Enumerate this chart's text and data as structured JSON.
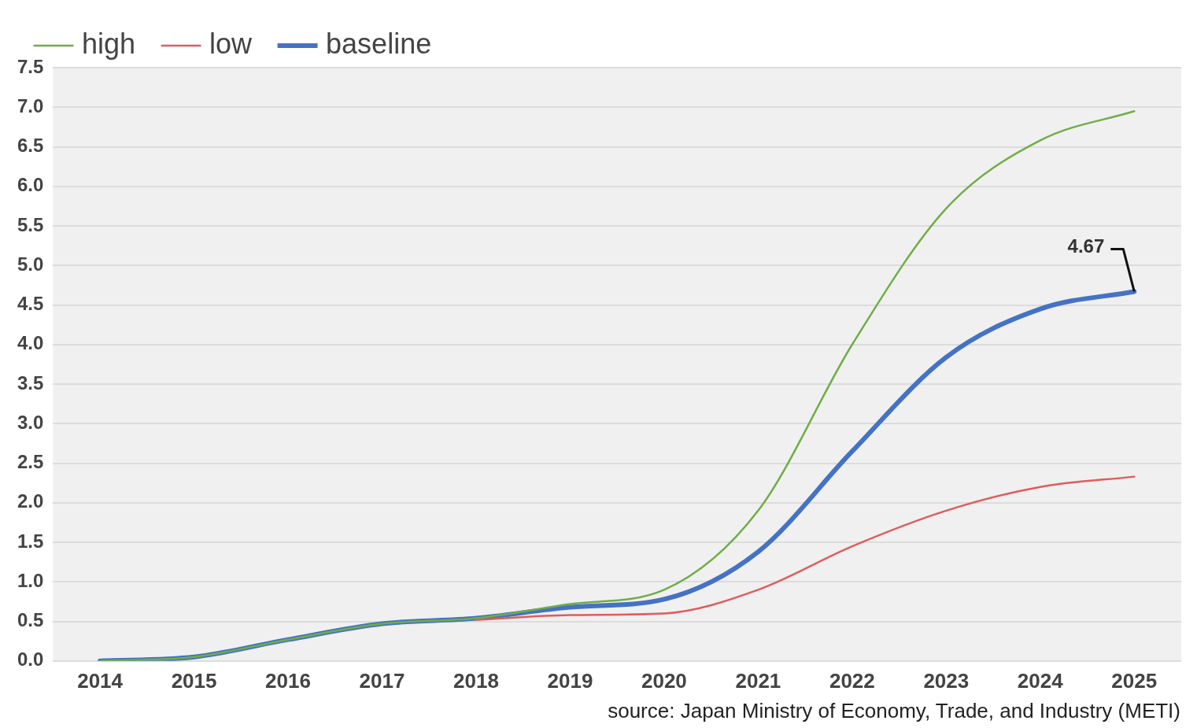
{
  "chart_data": {
    "type": "line",
    "categories": [
      "2014",
      "2015",
      "2016",
      "2017",
      "2018",
      "2019",
      "2020",
      "2021",
      "2022",
      "2023",
      "2024",
      "2025"
    ],
    "series": [
      {
        "name": "high",
        "color": "#70ad47",
        "values": [
          0,
          0.05,
          0.27,
          0.47,
          0.54,
          0.72,
          0.9,
          1.9,
          4.0,
          5.72,
          6.58,
          6.95
        ]
      },
      {
        "name": "low",
        "color": "#e05c5c",
        "values": [
          null,
          null,
          null,
          null,
          0.52,
          0.58,
          0.6,
          0.9,
          1.45,
          1.9,
          2.2,
          2.33
        ]
      },
      {
        "name": "baseline",
        "color": "#4472c4",
        "values": [
          0,
          0.05,
          0.27,
          0.47,
          0.54,
          0.68,
          0.78,
          1.38,
          2.65,
          3.84,
          4.45,
          4.67
        ]
      }
    ],
    "ylim": [
      0,
      7.5
    ],
    "yticks": [
      {
        "value": 0,
        "label": "0.0"
      },
      0.5,
      {
        "value": 1,
        "label": "1.0"
      },
      1.5,
      {
        "value": 2,
        "label": "2.0"
      },
      2.5,
      {
        "value": 3,
        "label": "3.0"
      },
      3.5,
      {
        "value": 4,
        "label": "4.0"
      },
      4.5,
      {
        "value": 5,
        "label": "5.0"
      },
      5.5,
      {
        "value": 6,
        "label": "6.0"
      },
      6.5,
      {
        "value": 7,
        "label": "7.0"
      },
      7.5
    ],
    "grid": "y",
    "legend": "top left",
    "marker": "none",
    "line_style": "solid",
    "annotations": [
      {
        "text": "4.67",
        "x": "2025",
        "y": 4.67
      },
      "source: Japan Ministry of Economy, Trade, and Industry (METI)"
    ]
  }
}
